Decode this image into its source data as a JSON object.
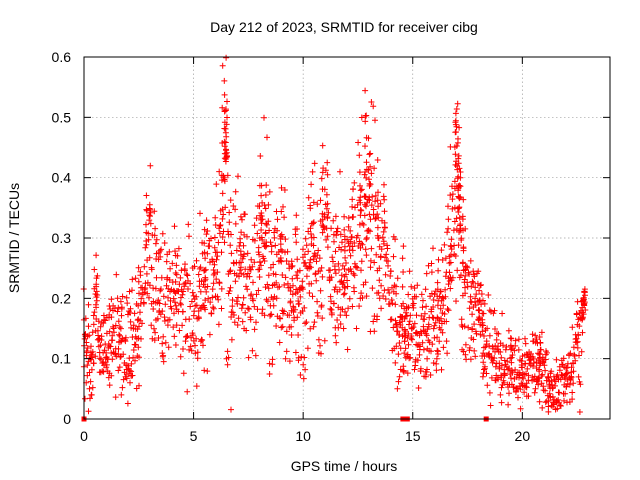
{
  "chart_data": {
    "type": "scatter",
    "title": "Day 212 of 2023, SRMTID for receiver cibg",
    "xlabel": "GPS time / hours",
    "ylabel": "SRMTID / TECUs",
    "xlim": [
      0,
      24
    ],
    "ylim": [
      0,
      0.6
    ],
    "x_ticks": [
      "0",
      "5",
      "10",
      "15",
      "20"
    ],
    "x_tick_values": [
      0,
      5,
      10,
      15,
      20
    ],
    "y_ticks": [
      "0",
      "0.1",
      "0.2",
      "0.3",
      "0.4",
      "0.5",
      "0.6"
    ],
    "y_tick_values": [
      0,
      0.1,
      0.2,
      0.3,
      0.4,
      0.5,
      0.6
    ],
    "grid": true,
    "marker": "plus",
    "marker_color": "#ff0000",
    "series": [
      {
        "name": "SRMTID",
        "profile": [
          [
            0.0,
            0.13
          ],
          [
            0.3,
            0.09
          ],
          [
            0.5,
            0.19
          ],
          [
            0.8,
            0.12
          ],
          [
            1.0,
            0.11
          ],
          [
            1.5,
            0.14
          ],
          [
            2.0,
            0.12
          ],
          [
            2.5,
            0.15
          ],
          [
            2.8,
            0.22
          ],
          [
            3.0,
            0.33
          ],
          [
            3.3,
            0.2
          ],
          [
            4.0,
            0.2
          ],
          [
            4.5,
            0.19
          ],
          [
            5.0,
            0.18
          ],
          [
            5.5,
            0.2
          ],
          [
            6.0,
            0.22
          ],
          [
            6.3,
            0.3
          ],
          [
            6.5,
            0.45
          ],
          [
            6.7,
            0.2
          ],
          [
            7.0,
            0.26
          ],
          [
            7.5,
            0.2
          ],
          [
            8.0,
            0.25
          ],
          [
            8.2,
            0.33
          ],
          [
            8.5,
            0.22
          ],
          [
            9.0,
            0.25
          ],
          [
            9.5,
            0.2
          ],
          [
            10.0,
            0.18
          ],
          [
            10.3,
            0.27
          ],
          [
            10.8,
            0.24
          ],
          [
            11.0,
            0.32
          ],
          [
            11.3,
            0.22
          ],
          [
            12.0,
            0.23
          ],
          [
            12.5,
            0.3
          ],
          [
            12.8,
            0.35
          ],
          [
            13.0,
            0.32
          ],
          [
            13.5,
            0.28
          ],
          [
            14.0,
            0.25
          ],
          [
            14.3,
            0.15
          ],
          [
            14.6,
            0.12
          ],
          [
            15.0,
            0.15
          ],
          [
            15.5,
            0.13
          ],
          [
            16.0,
            0.18
          ],
          [
            16.5,
            0.19
          ],
          [
            16.8,
            0.32
          ],
          [
            17.0,
            0.4
          ],
          [
            17.3,
            0.22
          ],
          [
            17.6,
            0.17
          ],
          [
            18.0,
            0.17
          ],
          [
            18.4,
            0.12
          ],
          [
            18.8,
            0.1
          ],
          [
            19.5,
            0.09
          ],
          [
            20.0,
            0.08
          ],
          [
            20.5,
            0.09
          ],
          [
            21.0,
            0.08
          ],
          [
            21.3,
            0.05
          ],
          [
            21.7,
            0.05
          ],
          [
            22.0,
            0.07
          ],
          [
            22.4,
            0.1
          ],
          [
            22.8,
            0.18
          ]
        ],
        "peaks": [
          [
            0.55,
            0.23
          ],
          [
            1.15,
            0.19
          ],
          [
            2.5,
            0.25
          ],
          [
            2.85,
            0.37
          ],
          [
            3.0,
            0.35
          ],
          [
            3.3,
            0.29
          ],
          [
            4.2,
            0.27
          ],
          [
            5.5,
            0.31
          ],
          [
            6.3,
            0.58
          ],
          [
            6.4,
            0.56
          ],
          [
            6.5,
            0.53
          ],
          [
            6.45,
            0.49
          ],
          [
            6.5,
            0.43
          ],
          [
            6.7,
            0.31
          ],
          [
            7.15,
            0.33
          ],
          [
            7.3,
            0.34
          ],
          [
            8.05,
            0.43
          ],
          [
            8.1,
            0.39
          ],
          [
            8.3,
            0.39
          ],
          [
            9.0,
            0.31
          ],
          [
            9.7,
            0.34
          ],
          [
            10.35,
            0.39
          ],
          [
            10.5,
            0.36
          ],
          [
            10.9,
            0.45
          ],
          [
            11.1,
            0.43
          ],
          [
            11.5,
            0.34
          ],
          [
            11.9,
            0.31
          ],
          [
            12.25,
            0.38
          ],
          [
            12.6,
            0.39
          ],
          [
            12.85,
            0.54
          ],
          [
            12.9,
            0.5
          ],
          [
            13.0,
            0.46
          ],
          [
            13.05,
            0.44
          ],
          [
            13.4,
            0.38
          ],
          [
            13.7,
            0.39
          ],
          [
            14.55,
            0.29
          ],
          [
            14.65,
            0.15
          ],
          [
            16.15,
            0.25
          ],
          [
            16.75,
            0.26
          ],
          [
            16.95,
            0.51
          ],
          [
            17.0,
            0.49
          ],
          [
            17.05,
            0.47
          ],
          [
            17.1,
            0.44
          ],
          [
            17.15,
            0.41
          ],
          [
            17.3,
            0.36
          ],
          [
            17.4,
            0.25
          ],
          [
            18.05,
            0.22
          ],
          [
            18.2,
            0.17
          ],
          [
            19.5,
            0.13
          ],
          [
            20.8,
            0.14
          ],
          [
            22.85,
            0.22
          ],
          [
            22.8,
            0.2
          ],
          [
            22.75,
            0.18
          ]
        ],
        "dips": [
          [
            0.1,
            0.06
          ],
          [
            0.25,
            0.05
          ],
          [
            0.35,
            0.04
          ],
          [
            1.7,
            0.04
          ],
          [
            1.9,
            0.07
          ],
          [
            2.1,
            0.06
          ],
          [
            6.55,
            0.09
          ],
          [
            6.5,
            0.1
          ],
          [
            9.2,
            0.1
          ],
          [
            10.0,
            0.09
          ],
          [
            14.3,
            0.05
          ],
          [
            14.4,
            0.07
          ],
          [
            15.6,
            0.07
          ],
          [
            16.1,
            0.1
          ],
          [
            18.2,
            0.07
          ],
          [
            19.0,
            0.04
          ],
          [
            20.6,
            0.05
          ],
          [
            21.2,
            0.03
          ],
          [
            21.4,
            0.02
          ],
          [
            21.9,
            0.03
          ]
        ],
        "zeros": [
          0.0,
          14.55,
          14.65,
          14.75,
          18.35
        ]
      }
    ]
  }
}
